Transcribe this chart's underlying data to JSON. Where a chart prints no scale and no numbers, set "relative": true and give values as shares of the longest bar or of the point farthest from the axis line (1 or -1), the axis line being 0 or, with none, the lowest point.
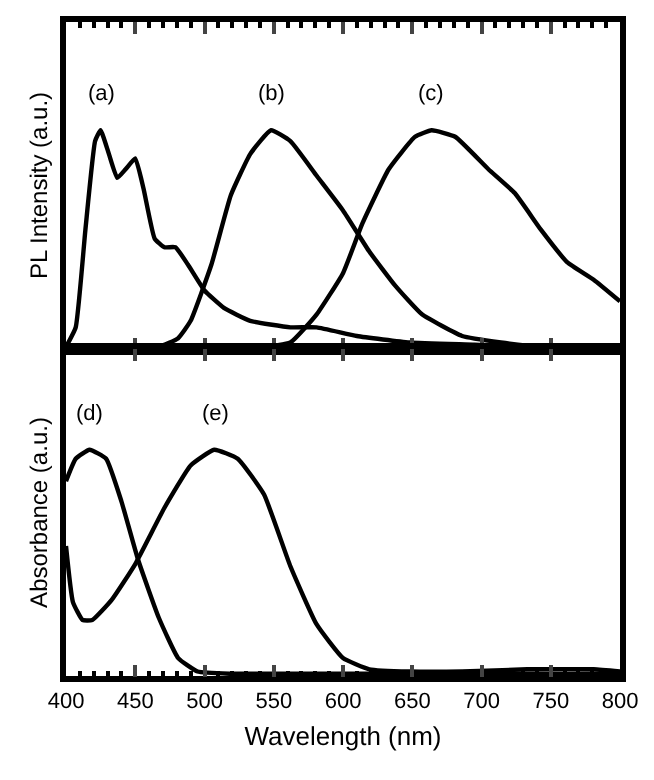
{
  "chart_data": [
    {
      "type": "line",
      "relative": true,
      "ylabel": "PL Intensity (a.u.)",
      "xlim": [
        400,
        800
      ],
      "xticks": [
        400,
        450,
        500,
        550,
        600,
        650,
        700,
        750,
        800
      ],
      "tick_labels": false,
      "grid": false,
      "legend": false,
      "marker": "none",
      "line_style": "solid",
      "annotations": [
        {
          "text": "(a)",
          "x": 425,
          "y": 1.0
        },
        {
          "text": "(b)",
          "x": 548,
          "y": 1.0
        },
        {
          "text": "(c)",
          "x": 664,
          "y": 1.0
        }
      ],
      "series": [
        {
          "color": "#000000",
          "x": [
            400,
            407,
            414,
            421,
            425,
            431,
            437,
            443,
            450,
            456,
            464,
            471,
            479,
            488,
            500,
            514,
            533,
            562,
            581,
            610,
            648,
            695,
            733,
            800
          ],
          "values": [
            0,
            0.09,
            0.54,
            0.95,
            1.0,
            0.89,
            0.78,
            0.82,
            0.87,
            0.73,
            0.5,
            0.46,
            0.46,
            0.38,
            0.26,
            0.18,
            0.12,
            0.09,
            0.09,
            0.05,
            0.02,
            0.01,
            0,
            0
          ]
        },
        {
          "color": "#000000",
          "x": [
            400,
            467,
            481,
            490,
            505,
            519,
            533,
            548,
            562,
            581,
            600,
            619,
            638,
            657,
            686,
            714,
            743,
            800
          ],
          "values": [
            0,
            0,
            0.04,
            0.12,
            0.38,
            0.7,
            0.89,
            1.0,
            0.95,
            0.79,
            0.63,
            0.44,
            0.28,
            0.15,
            0.05,
            0.02,
            0,
            0
          ]
        },
        {
          "color": "#000000",
          "x": [
            400,
            543,
            562,
            581,
            600,
            614,
            633,
            652,
            664,
            681,
            705,
            724,
            743,
            762,
            781,
            800
          ],
          "values": [
            0,
            0,
            0.02,
            0.15,
            0.34,
            0.57,
            0.82,
            0.97,
            1.0,
            0.97,
            0.82,
            0.71,
            0.54,
            0.39,
            0.31,
            0.21
          ]
        }
      ]
    },
    {
      "type": "line",
      "relative": true,
      "ylabel": "Absorbance (a.u.)",
      "xlabel": "Wavelength (nm)",
      "xlim": [
        400,
        800
      ],
      "xticks": [
        400,
        450,
        500,
        550,
        600,
        650,
        700,
        750,
        800
      ],
      "tick_labels": "x",
      "grid": false,
      "legend": false,
      "marker": "none",
      "line_style": "solid",
      "annotations": [
        {
          "text": "(d)",
          "x": 417,
          "y": 1.0
        },
        {
          "text": "(e)",
          "x": 507,
          "y": 1.0
        }
      ],
      "series": [
        {
          "color": "#000000",
          "x": [
            400,
            407,
            417,
            429,
            440,
            452,
            467,
            481,
            495,
            519,
            800
          ],
          "values": [
            0.86,
            0.96,
            1.0,
            0.96,
            0.77,
            0.51,
            0.25,
            0.07,
            0.01,
            0,
            0
          ]
        },
        {
          "color": "#000000",
          "x": [
            400,
            405,
            412,
            419,
            433,
            450,
            471,
            490,
            507,
            524,
            543,
            562,
            581,
            600,
            619,
            648,
            686,
            733,
            781,
            800
          ],
          "values": [
            0.57,
            0.32,
            0.24,
            0.24,
            0.33,
            0.49,
            0.74,
            0.93,
            1.0,
            0.96,
            0.8,
            0.48,
            0.22,
            0.07,
            0.02,
            0.01,
            0.01,
            0.02,
            0.02,
            0.01
          ]
        }
      ]
    }
  ]
}
